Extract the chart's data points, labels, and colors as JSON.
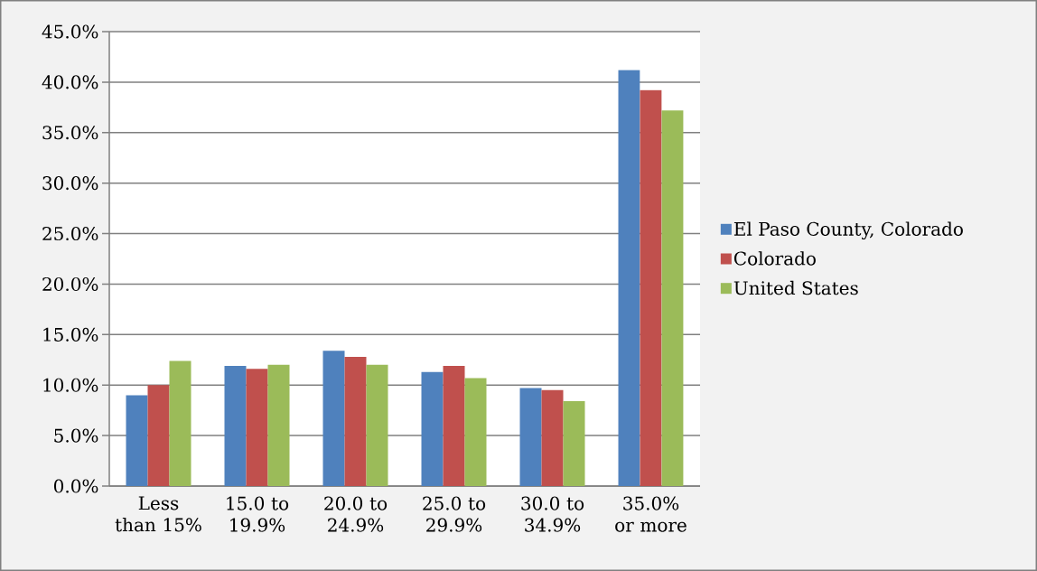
{
  "chart_data": {
    "type": "bar",
    "categories": [
      "Less than 15%",
      "15.0 to 19.9%",
      "20.0 to 24.9%",
      "25.0 to 29.9%",
      "30.0 to 34.9%",
      "35.0% or more"
    ],
    "series": [
      {
        "name": "El Paso County, Colorado",
        "color": "#4f81bd",
        "values": [
          9.0,
          11.9,
          13.4,
          11.3,
          9.7,
          41.2
        ]
      },
      {
        "name": "Colorado",
        "color": "#c0504d",
        "values": [
          10.0,
          11.6,
          12.8,
          11.9,
          9.5,
          39.2
        ]
      },
      {
        "name": "United States",
        "color": "#9bbb59",
        "values": [
          12.4,
          12.0,
          12.0,
          10.7,
          8.4,
          37.2
        ]
      }
    ],
    "ylim": [
      0,
      45
    ],
    "yticks": [
      {
        "value": 0,
        "label": "0.0%"
      },
      {
        "value": 5,
        "label": "5.0%"
      },
      {
        "value": 10,
        "label": "10.0%"
      },
      {
        "value": 15,
        "label": "15.0%"
      },
      {
        "value": 20,
        "label": "20.0%"
      },
      {
        "value": 25,
        "label": "25.0%"
      },
      {
        "value": 30,
        "label": "30.0%"
      },
      {
        "value": 35,
        "label": "35.0%"
      },
      {
        "value": 40,
        "label": "40.0%"
      },
      {
        "value": 45,
        "label": "45.0%"
      }
    ],
    "grid": "y",
    "legend": "right"
  }
}
